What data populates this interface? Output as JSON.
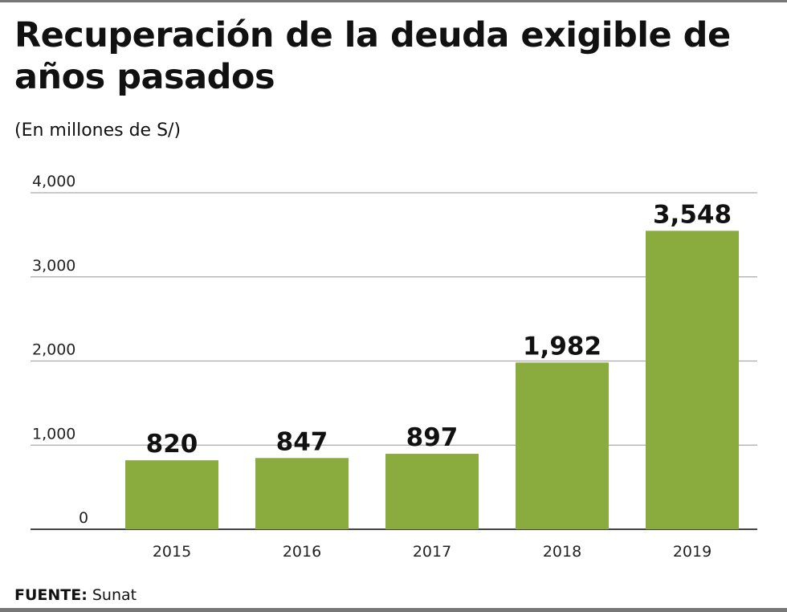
{
  "chart_data": {
    "type": "bar",
    "title": "Recuperación de la deuda exigible de años pasados",
    "subtitle": "(En millones de S/)",
    "categories": [
      "2015",
      "2016",
      "2017",
      "2018",
      "2019"
    ],
    "values": [
      820,
      847,
      897,
      1982,
      3548
    ],
    "value_labels": [
      "820",
      "847",
      "897",
      "1,982",
      "3,548"
    ],
    "yticks": [
      0,
      1000,
      2000,
      3000,
      4000
    ],
    "ytick_labels": [
      "0",
      "1,000",
      "2,000",
      "3,000",
      "4,000"
    ],
    "ylim": [
      0,
      4000
    ],
    "grid": true,
    "xlabel": "",
    "ylabel": "",
    "bar_color": "#8aab3e"
  },
  "source": {
    "label": "FUENTE:",
    "value": "Sunat"
  }
}
